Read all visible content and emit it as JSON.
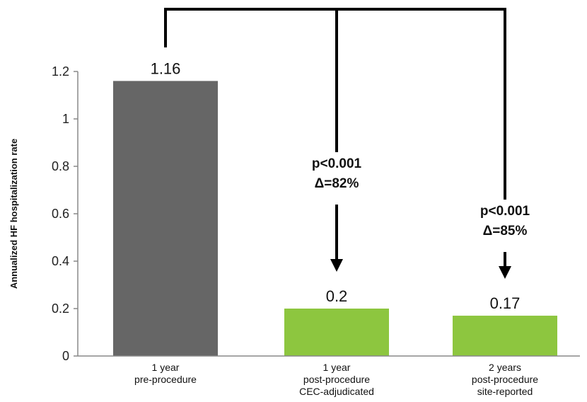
{
  "chart_data": {
    "type": "bar",
    "title": "",
    "xlabel": "",
    "ylabel": "Annualized HF hospitalization rate",
    "ylim": [
      0,
      1.2
    ],
    "yticks": [
      "0",
      "0.2",
      "0.4",
      "0.6",
      "0.8",
      "1",
      "1.2"
    ],
    "grid": false,
    "categories": [
      [
        "1 year",
        "pre-procedure"
      ],
      [
        "1 year",
        "post-procedure",
        "CEC-adjudicated"
      ],
      [
        "2 years",
        "post-procedure",
        "site-reported"
      ]
    ],
    "values": [
      1.16,
      0.2,
      0.17
    ],
    "data_labels": [
      "1.16",
      "0.2",
      "0.17"
    ],
    "colors": [
      "#666666",
      "#8dc63f",
      "#8dc63f"
    ],
    "annotations": [
      {
        "target": 1,
        "lines": [
          "p<0.001",
          "Δ=82%"
        ]
      },
      {
        "target": 2,
        "lines": [
          "p<0.001",
          "Δ=85%"
        ]
      }
    ]
  }
}
